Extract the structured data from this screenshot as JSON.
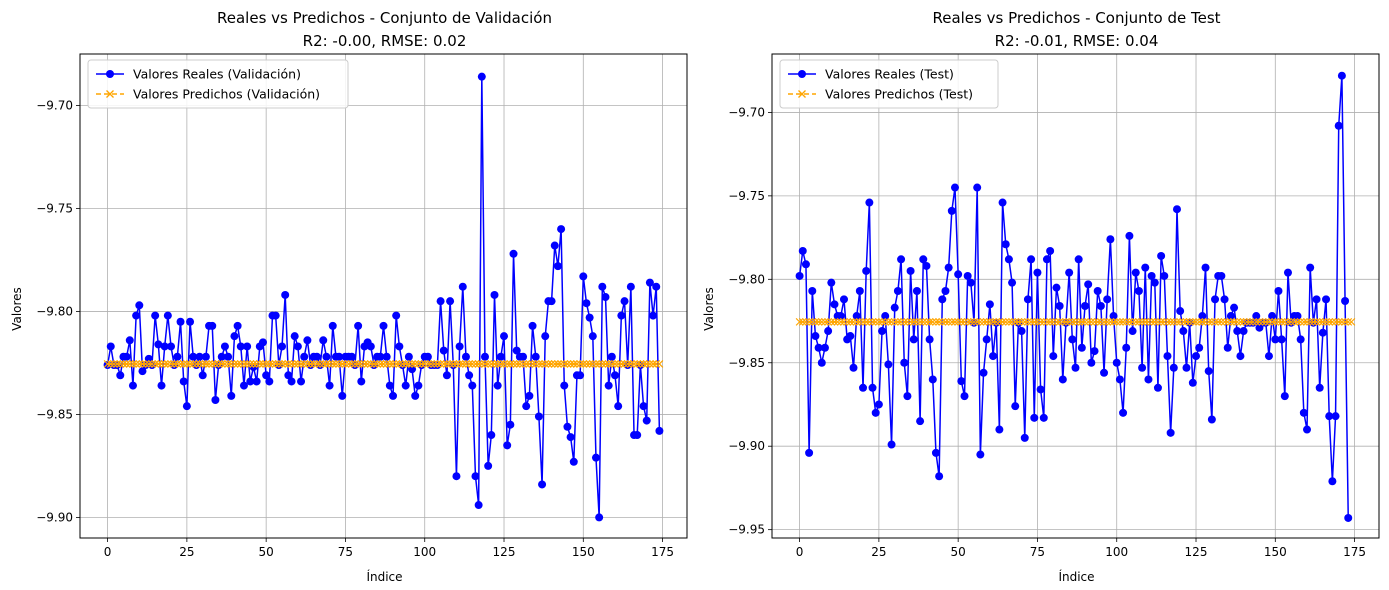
{
  "chart_data": [
    {
      "type": "line",
      "title": "Reales vs Predichos - Conjunto de Validación",
      "subtitle": "R2: -0.00, RMSE: 0.02",
      "xlabel": "Índice",
      "ylabel": "Valores",
      "xlim": [
        -8.7,
        182.7
      ],
      "ylim": [
        -9.91,
        -9.675
      ],
      "xticks": [
        0,
        25,
        50,
        75,
        100,
        125,
        150,
        175
      ],
      "xtick_labels": [
        "0",
        "25",
        "50",
        "75",
        "100",
        "125",
        "150",
        "175"
      ],
      "yticks": [
        -9.9,
        -9.85,
        -9.8,
        -9.75,
        -9.7
      ],
      "ytick_labels": [
        "−9.90",
        "−9.85",
        "−9.80",
        "−9.75",
        "−9.70"
      ],
      "grid": true,
      "legend_position": "top-left",
      "series": [
        {
          "name": "Valores Reales (Validación)",
          "color": "#0000ff",
          "marker": "circle",
          "linestyle": "solid",
          "values": [
            -9.826,
            -9.817,
            -9.826,
            -9.826,
            -9.831,
            -9.822,
            -9.822,
            -9.814,
            -9.836,
            -9.802,
            -9.797,
            -9.829,
            -9.826,
            -9.823,
            -9.826,
            -9.802,
            -9.816,
            -9.836,
            -9.817,
            -9.802,
            -9.817,
            -9.826,
            -9.822,
            -9.805,
            -9.834,
            -9.846,
            -9.805,
            -9.822,
            -9.826,
            -9.822,
            -9.831,
            -9.822,
            -9.807,
            -9.807,
            -9.843,
            -9.826,
            -9.822,
            -9.817,
            -9.822,
            -9.841,
            -9.812,
            -9.807,
            -9.817,
            -9.836,
            -9.817,
            -9.834,
            -9.827,
            -9.834,
            -9.817,
            -9.815,
            -9.831,
            -9.834,
            -9.802,
            -9.802,
            -9.826,
            -9.817,
            -9.792,
            -9.831,
            -9.834,
            -9.812,
            -9.817,
            -9.834,
            -9.822,
            -9.814,
            -9.826,
            -9.822,
            -9.822,
            -9.826,
            -9.814,
            -9.822,
            -9.836,
            -9.807,
            -9.822,
            -9.822,
            -9.841,
            -9.822,
            -9.822,
            -9.822,
            -9.826,
            -9.807,
            -9.834,
            -9.817,
            -9.815,
            -9.817,
            -9.826,
            -9.822,
            -9.822,
            -9.807,
            -9.822,
            -9.836,
            -9.841,
            -9.802,
            -9.817,
            -9.826,
            -9.836,
            -9.822,
            -9.828,
            -9.841,
            -9.836,
            -9.826,
            -9.822,
            -9.822,
            -9.826,
            -9.826,
            -9.826,
            -9.795,
            -9.819,
            -9.831,
            -9.795,
            -9.826,
            -9.88,
            -9.817,
            -9.788,
            -9.822,
            -9.831,
            -9.836,
            -9.88,
            -9.894,
            -9.686,
            -9.822,
            -9.875,
            -9.86,
            -9.792,
            -9.836,
            -9.822,
            -9.812,
            -9.865,
            -9.855,
            -9.772,
            -9.819,
            -9.822,
            -9.822,
            -9.846,
            -9.841,
            -9.807,
            -9.822,
            -9.851,
            -9.884,
            -9.812,
            -9.795,
            -9.795,
            -9.768,
            -9.778,
            -9.76,
            -9.836,
            -9.856,
            -9.861,
            -9.873,
            -9.831,
            -9.831,
            -9.783,
            -9.796,
            -9.803,
            -9.812,
            -9.871,
            -9.9,
            -9.788,
            -9.793,
            -9.836,
            -9.822,
            -9.831,
            -9.846,
            -9.802,
            -9.795,
            -9.826,
            -9.788,
            -9.86,
            -9.86,
            -9.826,
            -9.846,
            -9.853,
            -9.786,
            -9.802,
            -9.788,
            -9.858
          ]
        },
        {
          "name": "Valores Predichos (Validación)",
          "color": "#ffa500",
          "marker": "x",
          "linestyle": "dashed",
          "constant_value": -9.8255,
          "count": 175
        }
      ]
    },
    {
      "type": "line",
      "title": "Reales vs Predichos - Conjunto de Test",
      "subtitle": "R2: -0.01, RMSE: 0.04",
      "xlabel": "Índice",
      "ylabel": "Valores",
      "xlim": [
        -8.7,
        182.7
      ],
      "ylim": [
        -9.955,
        -9.665
      ],
      "xticks": [
        0,
        25,
        50,
        75,
        100,
        125,
        150,
        175
      ],
      "xtick_labels": [
        "0",
        "25",
        "50",
        "75",
        "100",
        "125",
        "150",
        "175"
      ],
      "yticks": [
        -9.95,
        -9.9,
        -9.85,
        -9.8,
        -9.75,
        -9.7
      ],
      "ytick_labels": [
        "−9.95",
        "−9.90",
        "−9.85",
        "−9.80",
        "−9.75",
        "−9.70"
      ],
      "grid": true,
      "legend_position": "top-left",
      "series": [
        {
          "name": "Valores Reales (Test)",
          "color": "#0000ff",
          "marker": "circle",
          "linestyle": "solid",
          "values": [
            -9.798,
            -9.783,
            -9.791,
            -9.904,
            -9.807,
            -9.834,
            -9.841,
            -9.85,
            -9.841,
            -9.831,
            -9.802,
            -9.815,
            -9.822,
            -9.822,
            -9.812,
            -9.836,
            -9.834,
            -9.853,
            -9.822,
            -9.807,
            -9.865,
            -9.795,
            -9.754,
            -9.865,
            -9.88,
            -9.875,
            -9.831,
            -9.822,
            -9.851,
            -9.899,
            -9.817,
            -9.807,
            -9.788,
            -9.85,
            -9.87,
            -9.795,
            -9.836,
            -9.807,
            -9.885,
            -9.788,
            -9.792,
            -9.836,
            -9.86,
            -9.904,
            -9.918,
            -9.812,
            -9.807,
            -9.793,
            -9.759,
            -9.745,
            -9.797,
            -9.861,
            -9.87,
            -9.798,
            -9.802,
            -9.826,
            -9.745,
            -9.905,
            -9.856,
            -9.836,
            -9.815,
            -9.846,
            -9.826,
            -9.89,
            -9.754,
            -9.779,
            -9.788,
            -9.802,
            -9.876,
            -9.826,
            -9.831,
            -9.895,
            -9.812,
            -9.788,
            -9.883,
            -9.796,
            -9.866,
            -9.883,
            -9.788,
            -9.783,
            -9.846,
            -9.805,
            -9.816,
            -9.86,
            -9.826,
            -9.796,
            -9.836,
            -9.853,
            -9.788,
            -9.841,
            -9.816,
            -9.803,
            -9.85,
            -9.843,
            -9.807,
            -9.816,
            -9.856,
            -9.812,
            -9.776,
            -9.822,
            -9.85,
            -9.86,
            -9.88,
            -9.841,
            -9.774,
            -9.831,
            -9.796,
            -9.807,
            -9.853,
            -9.793,
            -9.86,
            -9.798,
            -9.802,
            -9.865,
            -9.786,
            -9.798,
            -9.846,
            -9.892,
            -9.853,
            -9.758,
            -9.819,
            -9.831,
            -9.853,
            -9.826,
            -9.862,
            -9.846,
            -9.841,
            -9.822,
            -9.793,
            -9.855,
            -9.884,
            -9.812,
            -9.798,
            -9.798,
            -9.812,
            -9.841,
            -9.822,
            -9.817,
            -9.831,
            -9.846,
            -9.831,
            -9.826,
            -9.826,
            -9.826,
            -9.822,
            -9.829,
            -9.826,
            -9.826,
            -9.846,
            -9.822,
            -9.836,
            -9.807,
            -9.836,
            -9.87,
            -9.796,
            -9.826,
            -9.822,
            -9.822,
            -9.836,
            -9.88,
            -9.89,
            -9.793,
            -9.826,
            -9.812,
            -9.865,
            -9.832,
            -9.812,
            -9.882,
            -9.921,
            -9.882,
            -9.708,
            -9.678,
            -9.813,
            -9.943
          ]
        },
        {
          "name": "Valores Predichos (Test)",
          "color": "#ffa500",
          "marker": "x",
          "linestyle": "dashed",
          "constant_value": -9.8255,
          "count": 175
        }
      ]
    }
  ]
}
